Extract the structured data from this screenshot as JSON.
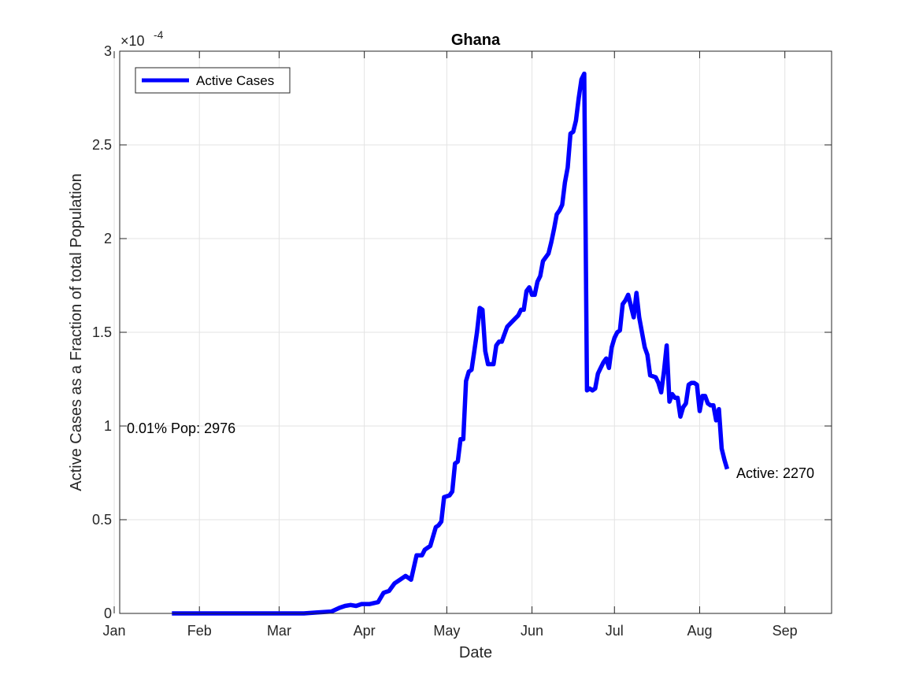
{
  "chart_data": {
    "type": "line",
    "title": "Ghana",
    "xlabel": "Date",
    "ylabel": "Active Cases as a Fraction of total Population",
    "y_exponent_label": "×10",
    "y_exponent_power": "-4",
    "x_tick_labels": [
      "Jan",
      "Feb",
      "Mar",
      "Apr",
      "May",
      "Jun",
      "Jul",
      "Aug",
      "Sep"
    ],
    "x_tick_dates": [
      "2020-01-01",
      "2020-02-01",
      "2020-03-01",
      "2020-04-01",
      "2020-05-01",
      "2020-06-01",
      "2020-07-01",
      "2020-08-01",
      "2020-09-01"
    ],
    "y_tick_labels": [
      "0",
      "0.5",
      "1",
      "1.5",
      "2",
      "2.5",
      "3"
    ],
    "y_tick_values": [
      0,
      0.5,
      1,
      1.5,
      2,
      2.5,
      3
    ],
    "xlim": [
      "2020-01-03",
      "2020-09-18"
    ],
    "ylim": [
      0,
      3
    ],
    "y_units": "1e-4",
    "grid": true,
    "legend_position": "top-left",
    "series": [
      {
        "name": "Active Cases",
        "color": "#0000ff",
        "points": [
          [
            "2020-01-22",
            0
          ],
          [
            "2020-02-15",
            0
          ],
          [
            "2020-03-10",
            0
          ],
          [
            "2020-03-15",
            0.005
          ],
          [
            "2020-03-20",
            0.01
          ],
          [
            "2020-03-23",
            0.03
          ],
          [
            "2020-03-25",
            0.04
          ],
          [
            "2020-03-27",
            0.045
          ],
          [
            "2020-03-29",
            0.04
          ],
          [
            "2020-03-31",
            0.05
          ],
          [
            "2020-04-03",
            0.05
          ],
          [
            "2020-04-06",
            0.06
          ],
          [
            "2020-04-08",
            0.11
          ],
          [
            "2020-04-10",
            0.12
          ],
          [
            "2020-04-12",
            0.16
          ],
          [
            "2020-04-14",
            0.18
          ],
          [
            "2020-04-16",
            0.2
          ],
          [
            "2020-04-18",
            0.18
          ],
          [
            "2020-04-20",
            0.31
          ],
          [
            "2020-04-22",
            0.31
          ],
          [
            "2020-04-23",
            0.34
          ],
          [
            "2020-04-25",
            0.36
          ],
          [
            "2020-04-27",
            0.46
          ],
          [
            "2020-04-28",
            0.47
          ],
          [
            "2020-04-29",
            0.49
          ],
          [
            "2020-04-30",
            0.62
          ],
          [
            "2020-05-02",
            0.63
          ],
          [
            "2020-05-03",
            0.65
          ],
          [
            "2020-05-04",
            0.8
          ],
          [
            "2020-05-05",
            0.81
          ],
          [
            "2020-05-06",
            0.93
          ],
          [
            "2020-05-07",
            0.93
          ],
          [
            "2020-05-08",
            1.24
          ],
          [
            "2020-05-09",
            1.29
          ],
          [
            "2020-05-10",
            1.3
          ],
          [
            "2020-05-11",
            1.4
          ],
          [
            "2020-05-12",
            1.5
          ],
          [
            "2020-05-13",
            1.63
          ],
          [
            "2020-05-14",
            1.62
          ],
          [
            "2020-05-15",
            1.4
          ],
          [
            "2020-05-16",
            1.33
          ],
          [
            "2020-05-18",
            1.33
          ],
          [
            "2020-05-19",
            1.43
          ],
          [
            "2020-05-20",
            1.45
          ],
          [
            "2020-05-21",
            1.45
          ],
          [
            "2020-05-22",
            1.49
          ],
          [
            "2020-05-23",
            1.53
          ],
          [
            "2020-05-25",
            1.56
          ],
          [
            "2020-05-27",
            1.59
          ],
          [
            "2020-05-28",
            1.62
          ],
          [
            "2020-05-29",
            1.62
          ],
          [
            "2020-05-30",
            1.72
          ],
          [
            "2020-05-31",
            1.74
          ],
          [
            "2020-06-01",
            1.7
          ],
          [
            "2020-06-02",
            1.7
          ],
          [
            "2020-06-03",
            1.77
          ],
          [
            "2020-06-04",
            1.8
          ],
          [
            "2020-06-05",
            1.88
          ],
          [
            "2020-06-06",
            1.9
          ],
          [
            "2020-06-07",
            1.92
          ],
          [
            "2020-06-08",
            1.98
          ],
          [
            "2020-06-09",
            2.05
          ],
          [
            "2020-06-10",
            2.13
          ],
          [
            "2020-06-11",
            2.15
          ],
          [
            "2020-06-12",
            2.18
          ],
          [
            "2020-06-13",
            2.3
          ],
          [
            "2020-06-14",
            2.38
          ],
          [
            "2020-06-15",
            2.56
          ],
          [
            "2020-06-16",
            2.57
          ],
          [
            "2020-06-17",
            2.63
          ],
          [
            "2020-06-18",
            2.75
          ],
          [
            "2020-06-19",
            2.85
          ],
          [
            "2020-06-20",
            2.88
          ],
          [
            "2020-06-21",
            1.19
          ],
          [
            "2020-06-22",
            1.2
          ],
          [
            "2020-06-23",
            1.19
          ],
          [
            "2020-06-24",
            1.2
          ],
          [
            "2020-06-25",
            1.28
          ],
          [
            "2020-06-26",
            1.31
          ],
          [
            "2020-06-27",
            1.34
          ],
          [
            "2020-06-28",
            1.36
          ],
          [
            "2020-06-29",
            1.31
          ],
          [
            "2020-06-30",
            1.42
          ],
          [
            "2020-07-01",
            1.47
          ],
          [
            "2020-07-02",
            1.5
          ],
          [
            "2020-07-03",
            1.51
          ],
          [
            "2020-07-04",
            1.65
          ],
          [
            "2020-07-05",
            1.67
          ],
          [
            "2020-07-06",
            1.7
          ],
          [
            "2020-07-07",
            1.64
          ],
          [
            "2020-07-08",
            1.58
          ],
          [
            "2020-07-09",
            1.71
          ],
          [
            "2020-07-10",
            1.58
          ],
          [
            "2020-07-11",
            1.5
          ],
          [
            "2020-07-12",
            1.42
          ],
          [
            "2020-07-13",
            1.38
          ],
          [
            "2020-07-14",
            1.27
          ],
          [
            "2020-07-16",
            1.26
          ],
          [
            "2020-07-17",
            1.23
          ],
          [
            "2020-07-18",
            1.18
          ],
          [
            "2020-07-19",
            1.29
          ],
          [
            "2020-07-20",
            1.43
          ],
          [
            "2020-07-21",
            1.13
          ],
          [
            "2020-07-22",
            1.17
          ],
          [
            "2020-07-23",
            1.15
          ],
          [
            "2020-07-24",
            1.15
          ],
          [
            "2020-07-25",
            1.05
          ],
          [
            "2020-07-26",
            1.1
          ],
          [
            "2020-07-27",
            1.12
          ],
          [
            "2020-07-28",
            1.22
          ],
          [
            "2020-07-29",
            1.23
          ],
          [
            "2020-07-30",
            1.23
          ],
          [
            "2020-07-31",
            1.22
          ],
          [
            "2020-08-01",
            1.08
          ],
          [
            "2020-08-02",
            1.16
          ],
          [
            "2020-08-03",
            1.16
          ],
          [
            "2020-08-04",
            1.12
          ],
          [
            "2020-08-05",
            1.11
          ],
          [
            "2020-08-06",
            1.11
          ],
          [
            "2020-08-07",
            1.03
          ],
          [
            "2020-08-08",
            1.09
          ],
          [
            "2020-08-09",
            0.88
          ],
          [
            "2020-08-10",
            0.82
          ],
          [
            "2020-08-11",
            0.77
          ]
        ]
      }
    ],
    "annotations": [
      {
        "text": "0.01% Pop: 2976",
        "anchor_date": "2020-01-03",
        "anchor_value": 1.0
      },
      {
        "text": "Active: 2270",
        "anchor_date": "2020-08-11",
        "anchor_value": 0.75
      }
    ]
  }
}
